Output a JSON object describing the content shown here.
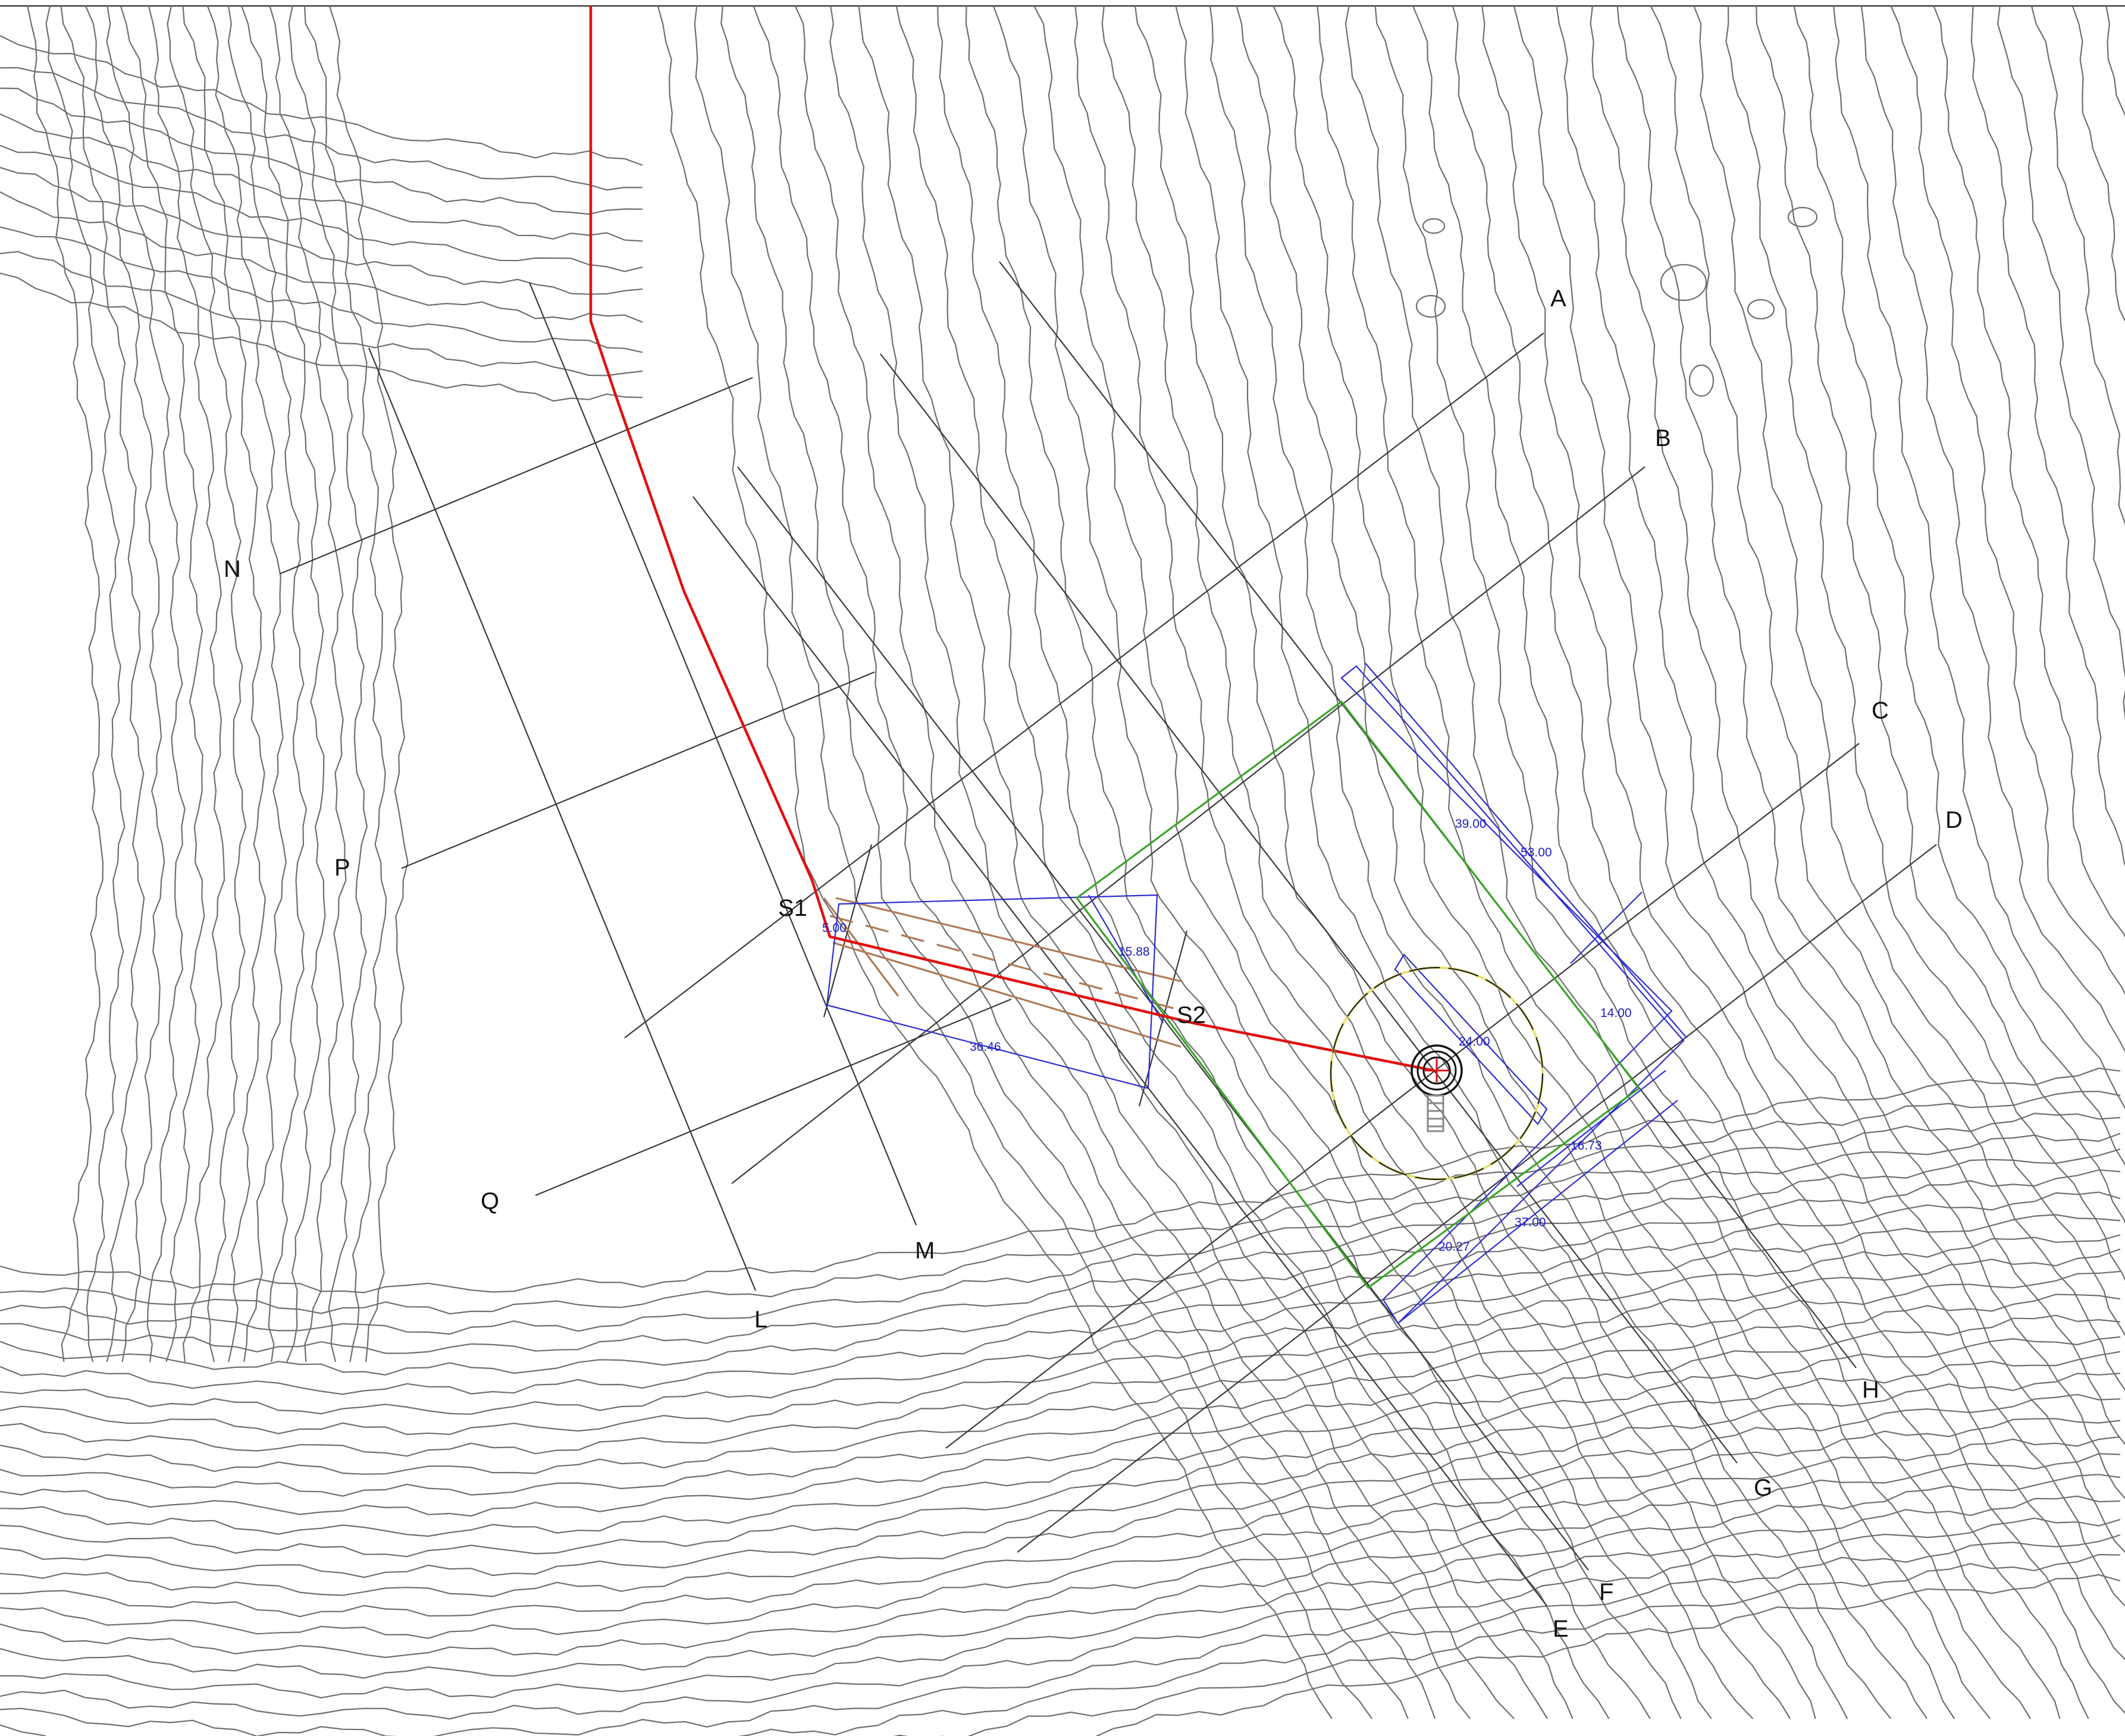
{
  "colors": {
    "contour": "#6f6f6f",
    "section_line": "#3a3a3a",
    "route": "#e01010",
    "boundary": "#3aa528",
    "dimension": "#2d2dcf",
    "corridor": "#b07a55",
    "radius_circle": "#e8e070"
  },
  "section_labels": {
    "A": "A",
    "B": "B",
    "C": "C",
    "D": "D",
    "E": "E",
    "F": "F",
    "G": "G",
    "H": "H",
    "L": "L",
    "M": "M",
    "N": "N",
    "P": "P",
    "Q": "Q"
  },
  "station_labels": {
    "s1": "S1",
    "s2": "S2"
  },
  "dimensions": {
    "d_5": "5.00",
    "d_15_88": "15.88",
    "d_36_46": "36.46",
    "d_39": "39.00",
    "d_53": "53.00",
    "d_14": "14.00",
    "d_24": "24.00",
    "d_16_73": "16.73",
    "d_37": "37.00",
    "d_20_27": "20.27"
  },
  "icons": {
    "well": "well-head-icon",
    "radius": "radius-circle"
  }
}
